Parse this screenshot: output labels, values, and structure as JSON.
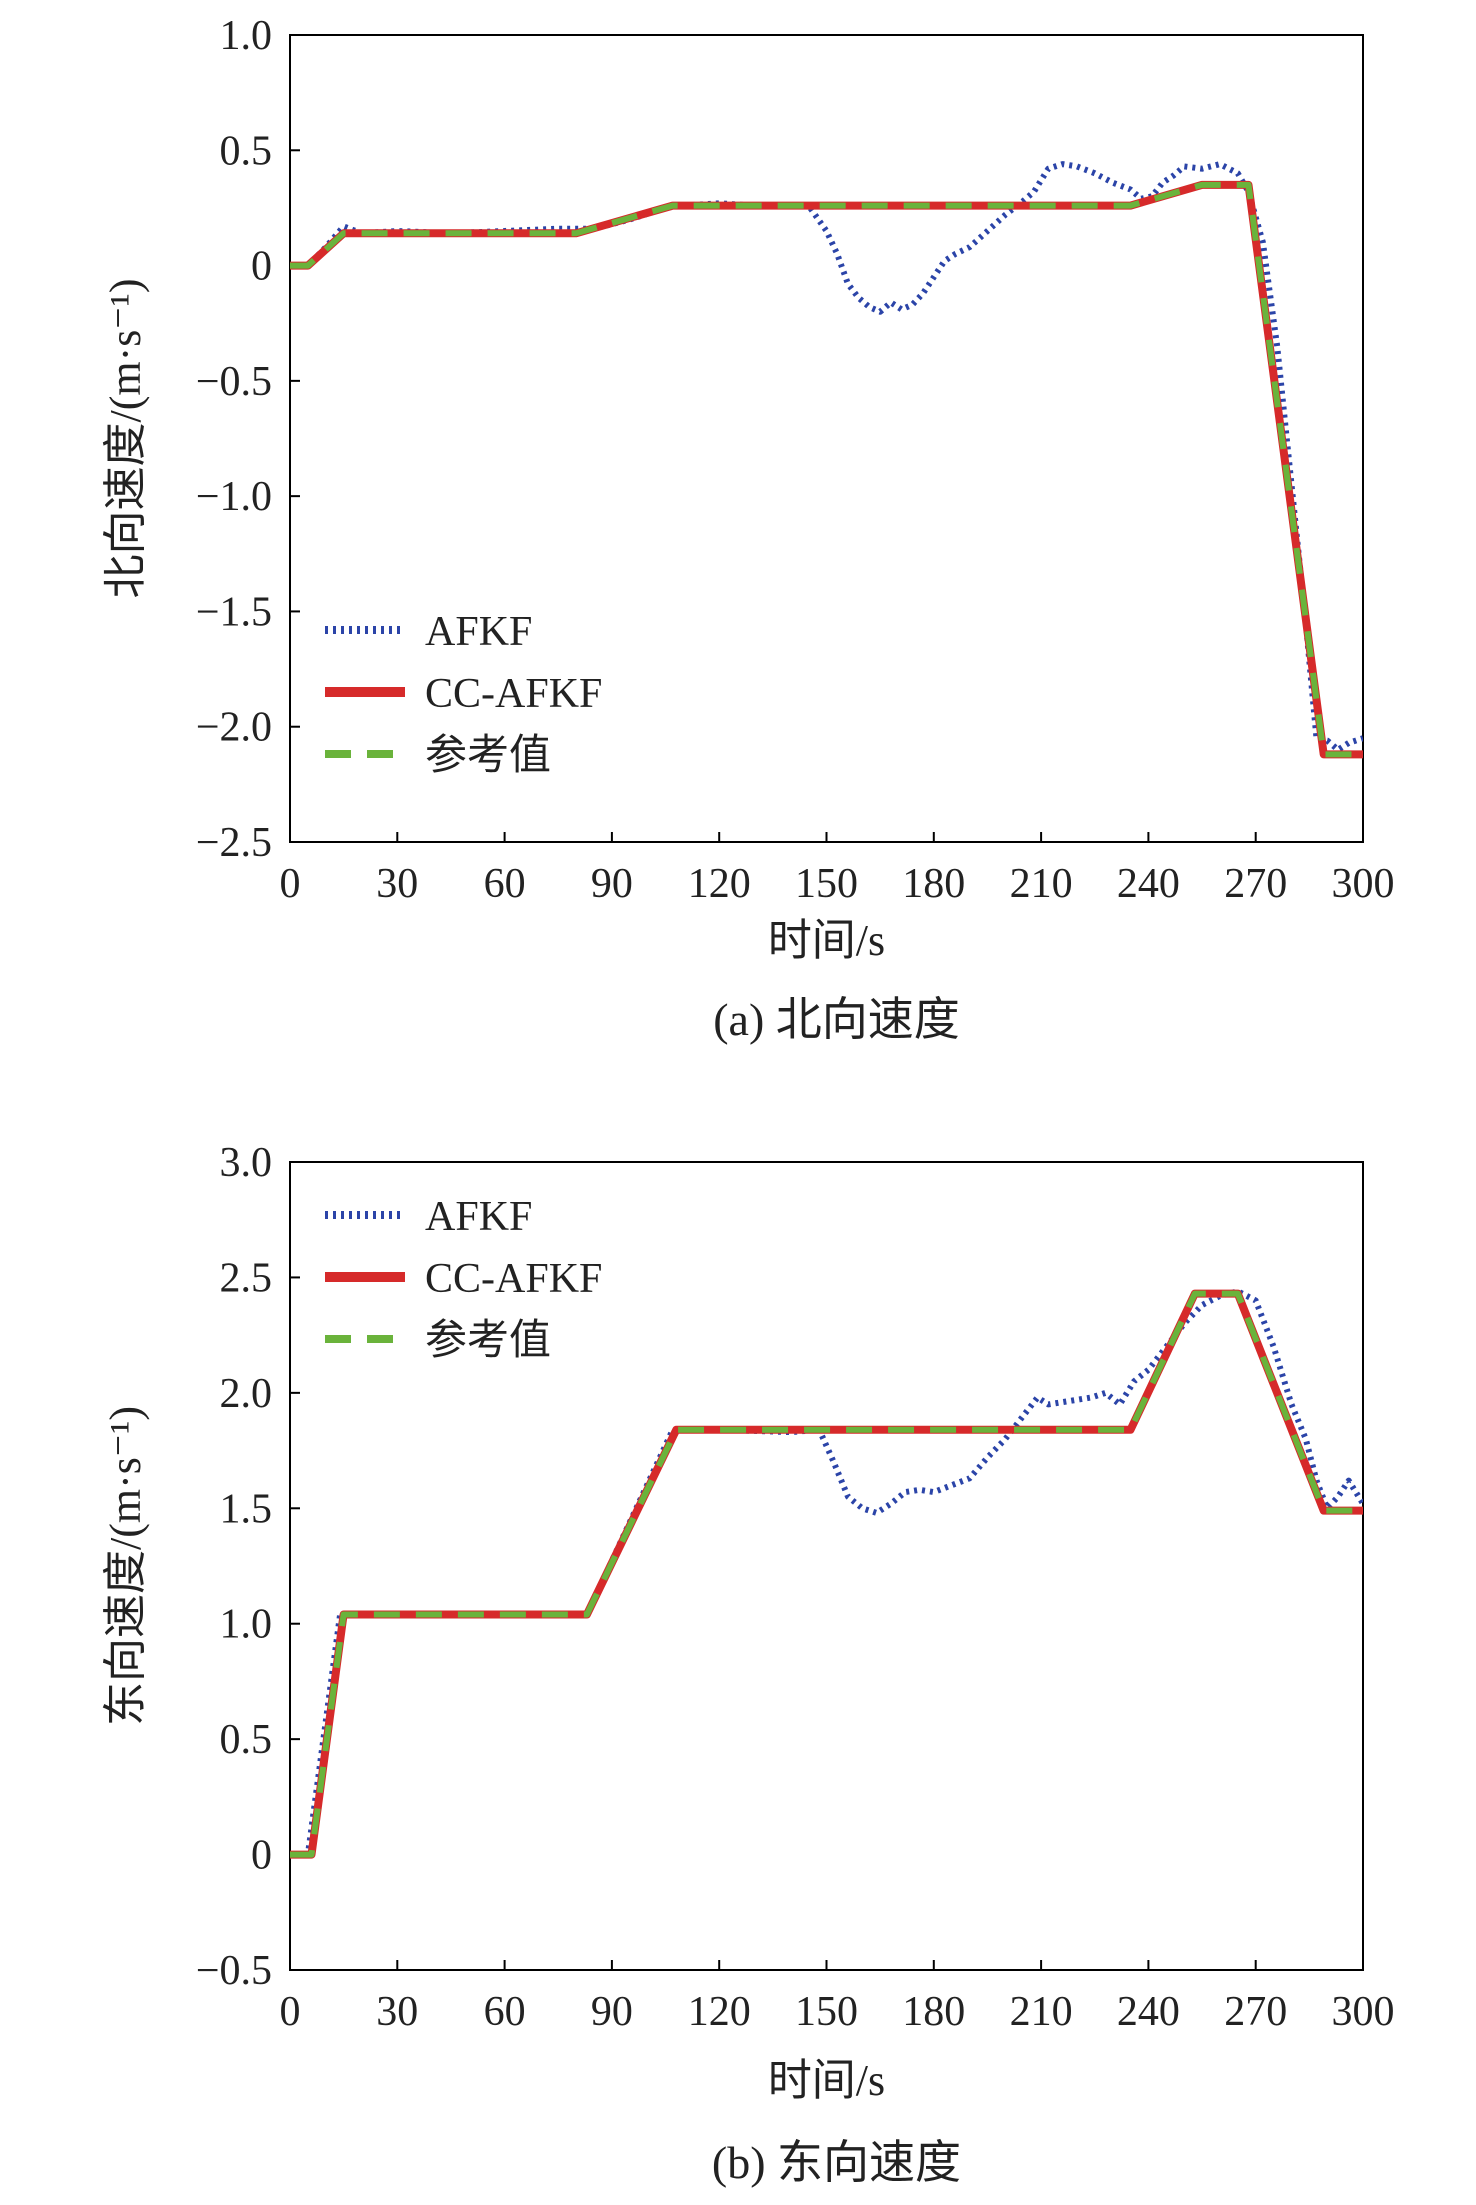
{
  "colors": {
    "afkf": "#2b44a8",
    "cc_afkf": "#d62a2a",
    "reference": "#6ab33b",
    "axis": "#000000"
  },
  "legend": [
    "AFKF",
    "CC-AFKF",
    "参考值"
  ],
  "chart_data": [
    {
      "type": "line",
      "caption": "(a) 北向速度",
      "xlabel": "时间/s",
      "ylabel": "北向速度/(m·s⁻¹)",
      "xlim": [
        0,
        300
      ],
      "ylim": [
        -2.5,
        1.0
      ],
      "xticks": [
        0,
        30,
        60,
        90,
        120,
        150,
        180,
        210,
        240,
        270,
        300
      ],
      "yticks": [
        1.0,
        0.5,
        0,
        -0.5,
        -1.0,
        -1.5,
        -2.0,
        -2.5
      ],
      "ytick_labels": [
        "1.0",
        "0.5",
        "0",
        "−0.5",
        "−1.0",
        "−1.5",
        "−2.0",
        "−2.5"
      ],
      "legend_position": "lower-left",
      "grid": false,
      "series": [
        {
          "name": "AFKF",
          "style": "dotted",
          "x": [
            0,
            5,
            10,
            15,
            20,
            30,
            45,
            60,
            75,
            85,
            95,
            105,
            110,
            120,
            130,
            140,
            145,
            150,
            153,
            156,
            159,
            162,
            165,
            168,
            171,
            174,
            177,
            180,
            183,
            186,
            190,
            195,
            200,
            205,
            208,
            212,
            216,
            220,
            225,
            230,
            235,
            238,
            241,
            244,
            247,
            250,
            255,
            260,
            265,
            268,
            272,
            276,
            280,
            284,
            287,
            290,
            293,
            296,
            300
          ],
          "y": [
            0,
            0,
            0.08,
            0.17,
            0.14,
            0.15,
            0.14,
            0.15,
            0.16,
            0.16,
            0.2,
            0.25,
            0.26,
            0.27,
            0.26,
            0.26,
            0.26,
            0.15,
            0.05,
            -0.08,
            -0.14,
            -0.18,
            -0.2,
            -0.16,
            -0.19,
            -0.17,
            -0.12,
            -0.05,
            0.02,
            0.05,
            0.08,
            0.15,
            0.22,
            0.28,
            0.32,
            0.42,
            0.44,
            0.43,
            0.4,
            0.36,
            0.33,
            0.29,
            0.3,
            0.36,
            0.39,
            0.43,
            0.42,
            0.44,
            0.4,
            0.32,
            0.1,
            -0.35,
            -0.95,
            -1.55,
            -2.05,
            -2.06,
            -2.1,
            -2.07,
            -2.05
          ]
        },
        {
          "name": "CC-AFKF",
          "style": "solid",
          "x": [
            0,
            5,
            15,
            80,
            107,
            235,
            255,
            268,
            289,
            300
          ],
          "y": [
            0,
            0,
            0.14,
            0.14,
            0.26,
            0.26,
            0.35,
            0.35,
            -2.12,
            -2.12
          ]
        },
        {
          "name": "参考值",
          "style": "dashed",
          "x": [
            0,
            5,
            15,
            80,
            107,
            235,
            255,
            268,
            289,
            300
          ],
          "y": [
            0,
            0,
            0.14,
            0.14,
            0.26,
            0.26,
            0.35,
            0.35,
            -2.12,
            -2.12
          ]
        }
      ]
    },
    {
      "type": "line",
      "caption": "(b) 东向速度",
      "xlabel": "时间/s",
      "ylabel": "东向速度/(m·s⁻¹)",
      "xlim": [
        0,
        300
      ],
      "ylim": [
        -0.5,
        3.0
      ],
      "xticks": [
        0,
        30,
        60,
        90,
        120,
        150,
        180,
        210,
        240,
        270,
        300
      ],
      "yticks": [
        3.0,
        2.5,
        2.0,
        1.5,
        1.0,
        0.5,
        0,
        -0.5
      ],
      "ytick_labels": [
        "3.0",
        "2.5",
        "2.0",
        "1.5",
        "1.0",
        "0.5",
        "0",
        "−0.5"
      ],
      "legend_position": "top-left",
      "grid": false,
      "series": [
        {
          "name": "AFKF",
          "style": "dotted",
          "x": [
            0,
            5,
            14,
            30,
            60,
            83,
            107,
            120,
            140,
            148,
            152,
            156,
            160,
            164,
            168,
            172,
            176,
            180,
            185,
            190,
            195,
            200,
            205,
            209,
            212,
            216,
            220,
            224,
            228,
            232,
            236,
            240,
            245,
            250,
            255,
            260,
            265,
            270,
            275,
            280,
            284,
            287,
            290,
            293,
            296,
            300
          ],
          "y": [
            0,
            0,
            1.04,
            1.04,
            1.04,
            1.04,
            1.84,
            1.84,
            1.83,
            1.84,
            1.7,
            1.55,
            1.5,
            1.48,
            1.52,
            1.57,
            1.58,
            1.57,
            1.6,
            1.63,
            1.72,
            1.8,
            1.9,
            1.98,
            1.95,
            1.96,
            1.97,
            1.98,
            2.0,
            1.95,
            2.05,
            2.1,
            2.2,
            2.3,
            2.38,
            2.42,
            2.44,
            2.4,
            2.2,
            1.95,
            1.8,
            1.62,
            1.5,
            1.55,
            1.62,
            1.52
          ]
        },
        {
          "name": "CC-AFKF",
          "style": "solid",
          "x": [
            0,
            6,
            15,
            83,
            108,
            235,
            253,
            265,
            289,
            300
          ],
          "y": [
            0,
            0,
            1.04,
            1.04,
            1.84,
            1.84,
            2.43,
            2.43,
            1.49,
            1.49
          ]
        },
        {
          "name": "参考值",
          "style": "dashed",
          "x": [
            0,
            6,
            15,
            83,
            108,
            235,
            253,
            265,
            289,
            300
          ],
          "y": [
            0,
            0,
            1.04,
            1.04,
            1.84,
            1.84,
            2.43,
            2.43,
            1.49,
            1.49
          ]
        }
      ]
    }
  ]
}
